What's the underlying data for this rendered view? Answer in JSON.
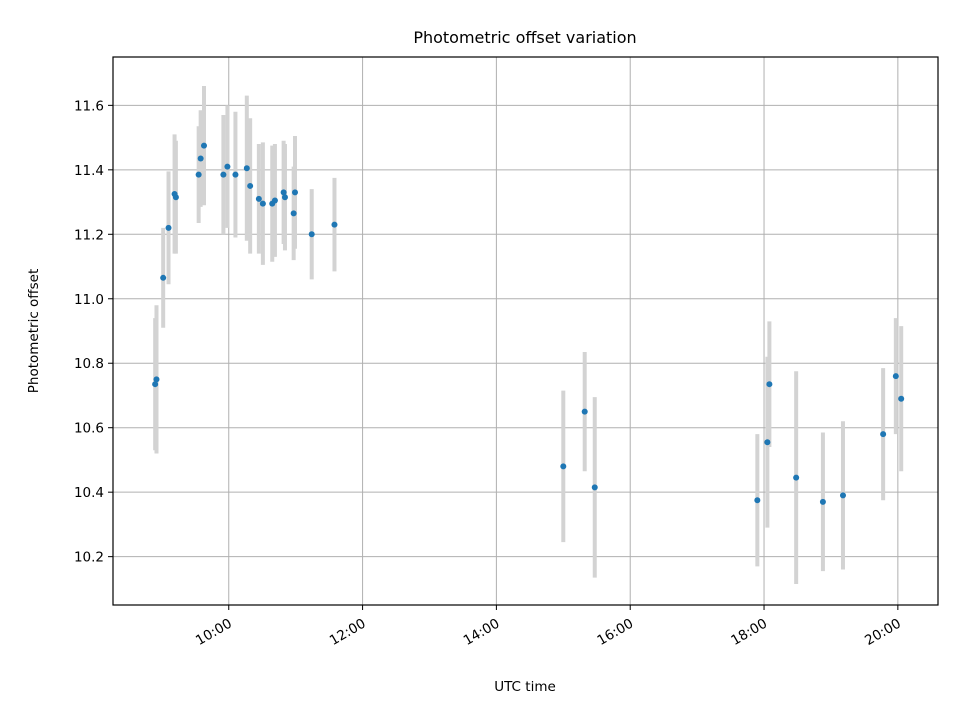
{
  "chart_data": {
    "type": "scatter",
    "title": "Photometric offset variation",
    "xlabel": "UTC time",
    "ylabel": "Photometric offset",
    "x_unit": "hours (UTC)",
    "xlim_hours": [
      8.27,
      20.6
    ],
    "ylim": [
      10.05,
      11.75
    ],
    "x_ticks": [
      {
        "hour": 10,
        "label": "10:00"
      },
      {
        "hour": 12,
        "label": "12:00"
      },
      {
        "hour": 14,
        "label": "14:00"
      },
      {
        "hour": 16,
        "label": "16:00"
      },
      {
        "hour": 18,
        "label": "18:00"
      },
      {
        "hour": 20,
        "label": "20:00"
      }
    ],
    "y_ticks": [
      {
        "value": 10.2,
        "label": "10.2"
      },
      {
        "value": 10.4,
        "label": "10.4"
      },
      {
        "value": 10.6,
        "label": "10.6"
      },
      {
        "value": 10.8,
        "label": "10.8"
      },
      {
        "value": 11.0,
        "label": "11.0"
      },
      {
        "value": 11.2,
        "label": "11.2"
      },
      {
        "value": 11.4,
        "label": "11.4"
      },
      {
        "value": 11.6,
        "label": "11.6"
      }
    ],
    "grid": true,
    "point_color": "#1f77b4",
    "errorbar_color": "#d3d3d3",
    "points": [
      {
        "t": 8.9,
        "y": 10.735,
        "err": 0.205
      },
      {
        "t": 8.92,
        "y": 10.75,
        "err": 0.23
      },
      {
        "t": 9.02,
        "y": 11.065,
        "err": 0.155
      },
      {
        "t": 9.1,
        "y": 11.22,
        "err": 0.175
      },
      {
        "t": 9.19,
        "y": 11.325,
        "err": 0.185
      },
      {
        "t": 9.21,
        "y": 11.315,
        "err": 0.175
      },
      {
        "t": 9.55,
        "y": 11.385,
        "err": 0.15
      },
      {
        "t": 9.58,
        "y": 11.435,
        "err": 0.15
      },
      {
        "t": 9.63,
        "y": 11.475,
        "err": 0.185
      },
      {
        "t": 9.92,
        "y": 11.385,
        "err": 0.185
      },
      {
        "t": 9.98,
        "y": 11.41,
        "err": 0.19
      },
      {
        "t": 10.1,
        "y": 11.385,
        "err": 0.195
      },
      {
        "t": 10.27,
        "y": 11.405,
        "err": 0.225
      },
      {
        "t": 10.32,
        "y": 11.35,
        "err": 0.21
      },
      {
        "t": 10.45,
        "y": 11.31,
        "err": 0.17
      },
      {
        "t": 10.51,
        "y": 11.295,
        "err": 0.19
      },
      {
        "t": 10.65,
        "y": 11.295,
        "err": 0.18
      },
      {
        "t": 10.69,
        "y": 11.305,
        "err": 0.175
      },
      {
        "t": 10.82,
        "y": 11.33,
        "err": 0.16
      },
      {
        "t": 10.84,
        "y": 11.315,
        "err": 0.165
      },
      {
        "t": 10.97,
        "y": 11.265,
        "err": 0.145
      },
      {
        "t": 10.99,
        "y": 11.33,
        "err": 0.175
      },
      {
        "t": 11.24,
        "y": 11.2,
        "err": 0.14
      },
      {
        "t": 11.58,
        "y": 11.23,
        "err": 0.145
      },
      {
        "t": 15.0,
        "y": 10.48,
        "err": 0.235
      },
      {
        "t": 15.32,
        "y": 10.65,
        "err": 0.185
      },
      {
        "t": 15.47,
        "y": 10.415,
        "err": 0.28
      },
      {
        "t": 17.9,
        "y": 10.375,
        "err": 0.205
      },
      {
        "t": 18.05,
        "y": 10.555,
        "err": 0.265
      },
      {
        "t": 18.08,
        "y": 10.735,
        "err": 0.195
      },
      {
        "t": 18.48,
        "y": 10.445,
        "err": 0.33
      },
      {
        "t": 18.88,
        "y": 10.37,
        "err": 0.215
      },
      {
        "t": 19.18,
        "y": 10.39,
        "err": 0.23
      },
      {
        "t": 19.78,
        "y": 10.58,
        "err": 0.205
      },
      {
        "t": 19.97,
        "y": 10.76,
        "err": 0.18
      },
      {
        "t": 20.05,
        "y": 10.69,
        "err": 0.225
      }
    ]
  }
}
